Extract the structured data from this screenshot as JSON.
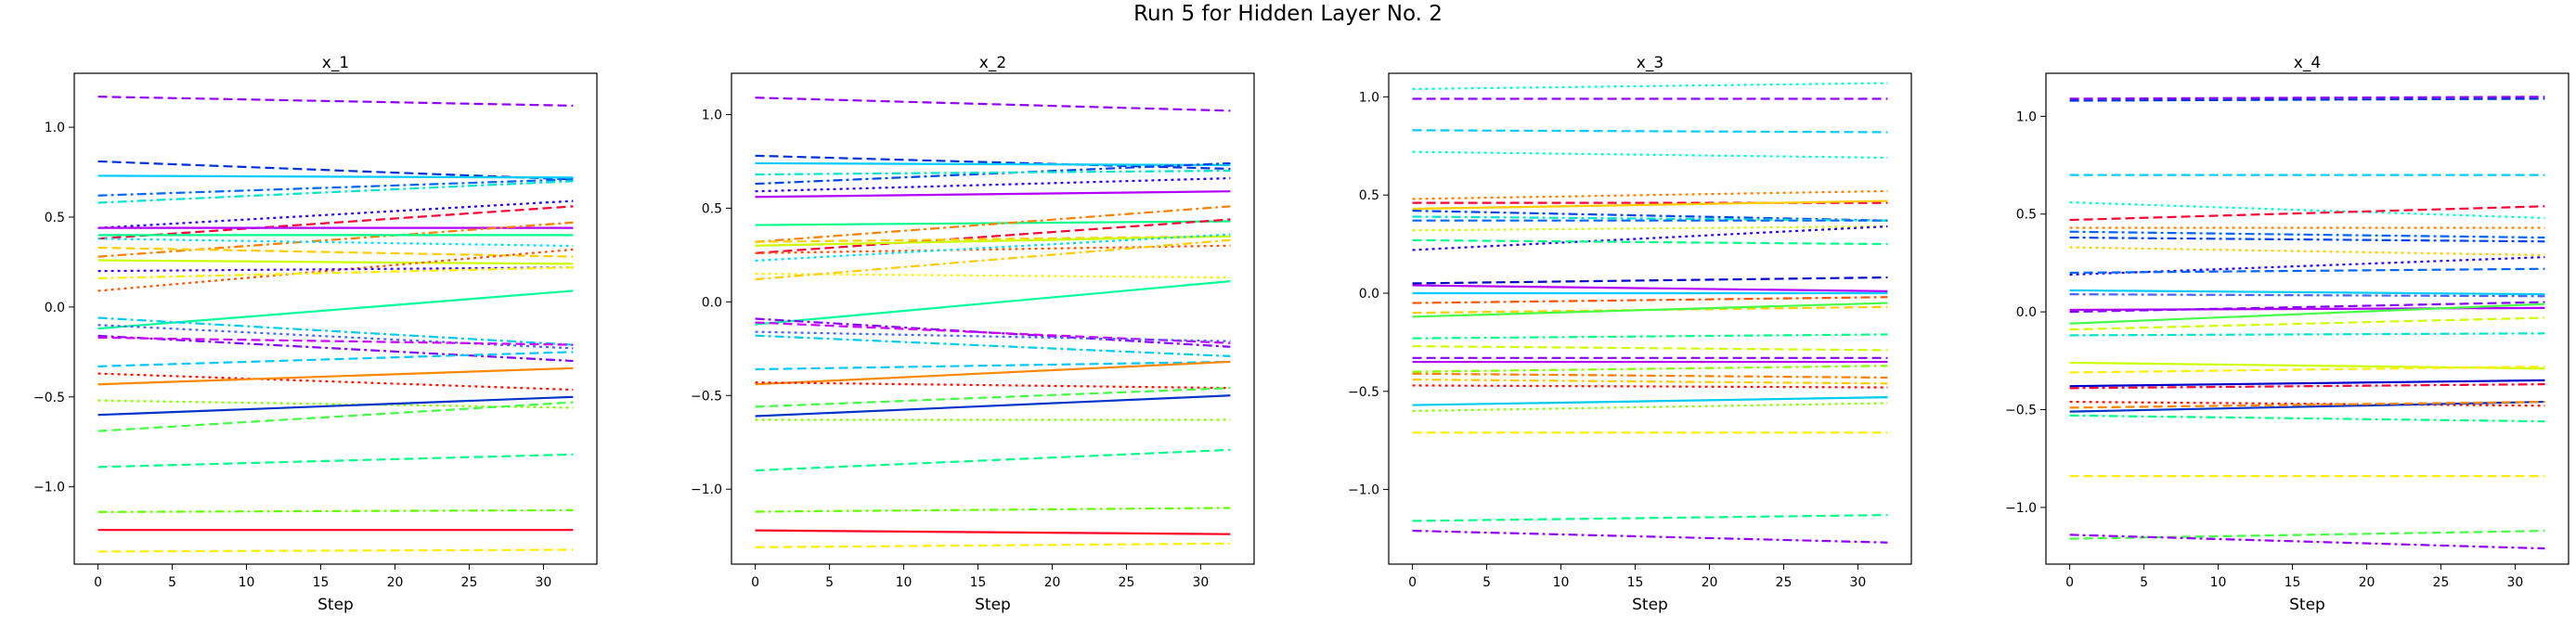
{
  "figure": {
    "title": "Run 5 for Hidden Layer No. 2"
  },
  "chart_data": [
    {
      "type": "line",
      "title": "x_1",
      "xlabel": "Step",
      "xlim": [
        -1.6,
        33.6
      ],
      "ylim": [
        -1.43,
        1.3
      ],
      "xticks": [
        0,
        5,
        10,
        15,
        20,
        25,
        30
      ],
      "yticks": [
        -1.0,
        -0.5,
        0.0,
        0.5,
        1.0
      ],
      "x_range": [
        0,
        32
      ],
      "series": [
        {
          "color": "#9400ff",
          "style": "dashed",
          "start": 1.17,
          "end": 1.12
        },
        {
          "color": "#0033dd",
          "style": "dashed",
          "start": 0.81,
          "end": 0.71
        },
        {
          "color": "#00ccff",
          "style": "solid",
          "start": 0.73,
          "end": 0.72
        },
        {
          "color": "#0066ff",
          "style": "dashdot",
          "start": 0.62,
          "end": 0.71
        },
        {
          "color": "#00e5cc",
          "style": "dashdot",
          "start": 0.58,
          "end": 0.7
        },
        {
          "color": "#2200ff",
          "style": "dotted",
          "start": 0.44,
          "end": 0.59
        },
        {
          "color": "#ff0033",
          "style": "dashed",
          "start": 0.38,
          "end": 0.56
        },
        {
          "color": "#b300ff",
          "style": "solid",
          "start": 0.44,
          "end": 0.44
        },
        {
          "color": "#ff7f00",
          "style": "dashdot",
          "start": 0.28,
          "end": 0.47
        },
        {
          "color": "#00ff88",
          "style": "solid",
          "start": 0.4,
          "end": 0.4
        },
        {
          "color": "#00ddff",
          "style": "dotted",
          "start": 0.38,
          "end": 0.34
        },
        {
          "color": "#ffcc00",
          "style": "dashed",
          "start": 0.33,
          "end": 0.28
        },
        {
          "color": "#ccff00",
          "style": "solid",
          "start": 0.26,
          "end": 0.24
        },
        {
          "color": "#ff5500",
          "style": "dotted",
          "start": 0.09,
          "end": 0.32
        },
        {
          "color": "#4400ff",
          "style": "dotted",
          "start": 0.2,
          "end": 0.22
        },
        {
          "color": "#ffee00",
          "style": "dashdot",
          "start": 0.16,
          "end": 0.22
        },
        {
          "color": "#00ff99",
          "style": "solid",
          "start": -0.12,
          "end": 0.09
        },
        {
          "color": "#00ccee",
          "style": "dashdot",
          "start": -0.06,
          "end": -0.21
        },
        {
          "color": "#4466ff",
          "style": "dotted",
          "start": -0.1,
          "end": -0.23
        },
        {
          "color": "#8800ff",
          "style": "dashdot",
          "start": -0.16,
          "end": -0.3
        },
        {
          "color": "#cc00ff",
          "style": "dashed",
          "start": -0.17,
          "end": -0.21
        },
        {
          "color": "#00c8ff",
          "style": "dashed",
          "start": -0.33,
          "end": -0.25
        },
        {
          "color": "#ff1100",
          "style": "dotted",
          "start": -0.37,
          "end": -0.46
        },
        {
          "color": "#ff8800",
          "style": "solid",
          "start": -0.43,
          "end": -0.34
        },
        {
          "color": "#88ff00",
          "style": "dotted",
          "start": -0.52,
          "end": -0.56
        },
        {
          "color": "#44ff44",
          "style": "dashed",
          "start": -0.69,
          "end": -0.53
        },
        {
          "color": "#0033cc",
          "style": "solid",
          "start": -0.6,
          "end": -0.5
        },
        {
          "color": "#00ff88",
          "style": "dashed",
          "start": -0.89,
          "end": -0.82
        },
        {
          "color": "#66ff00",
          "style": "dashdot",
          "start": -1.14,
          "end": -1.13
        },
        {
          "color": "#ff0022",
          "style": "solid",
          "start": -1.24,
          "end": -1.24
        },
        {
          "color": "#ffee00",
          "style": "dashed",
          "start": -1.36,
          "end": -1.35
        }
      ]
    },
    {
      "type": "line",
      "title": "x_2",
      "xlabel": "Step",
      "xlim": [
        -1.6,
        33.6
      ],
      "ylim": [
        -1.4,
        1.22
      ],
      "xticks": [
        0,
        5,
        10,
        15,
        20,
        25,
        30
      ],
      "yticks": [
        -1.0,
        -0.5,
        0.0,
        0.5,
        1.0
      ],
      "x_range": [
        0,
        32
      ],
      "series": [
        {
          "color": "#9400ff",
          "style": "dashed",
          "start": 1.09,
          "end": 1.02
        },
        {
          "color": "#0033dd",
          "style": "dashed",
          "start": 0.78,
          "end": 0.71
        },
        {
          "color": "#00ccff",
          "style": "solid",
          "start": 0.74,
          "end": 0.73
        },
        {
          "color": "#0044ee",
          "style": "dashdot",
          "start": 0.63,
          "end": 0.74
        },
        {
          "color": "#00e5cc",
          "style": "dashdot",
          "start": 0.68,
          "end": 0.7
        },
        {
          "color": "#2200ff",
          "style": "dotted",
          "start": 0.59,
          "end": 0.66
        },
        {
          "color": "#b300ff",
          "style": "solid",
          "start": 0.56,
          "end": 0.59
        },
        {
          "color": "#00ff88",
          "style": "solid",
          "start": 0.41,
          "end": 0.43
        },
        {
          "color": "#ff7f00",
          "style": "dashdot",
          "start": 0.32,
          "end": 0.51
        },
        {
          "color": "#ff0033",
          "style": "dashed",
          "start": 0.26,
          "end": 0.44
        },
        {
          "color": "#ff5500",
          "style": "dotted",
          "start": 0.26,
          "end": 0.3
        },
        {
          "color": "#ffcc00",
          "style": "dashed",
          "start": 0.32,
          "end": 0.35
        },
        {
          "color": "#ccff00",
          "style": "solid",
          "start": 0.3,
          "end": 0.35
        },
        {
          "color": "#00ddff",
          "style": "dotted",
          "start": 0.22,
          "end": 0.36
        },
        {
          "color": "#ffee00",
          "style": "dotted",
          "start": 0.15,
          "end": 0.13
        },
        {
          "color": "#ffcc00",
          "style": "dashdot",
          "start": 0.12,
          "end": 0.33
        },
        {
          "color": "#00ff99",
          "style": "solid",
          "start": -0.12,
          "end": 0.11
        },
        {
          "color": "#8800ff",
          "style": "dashdot",
          "start": -0.09,
          "end": -0.24
        },
        {
          "color": "#cc00ff",
          "style": "dashed",
          "start": -0.11,
          "end": -0.22
        },
        {
          "color": "#4466ff",
          "style": "dotted",
          "start": -0.16,
          "end": -0.21
        },
        {
          "color": "#00ccee",
          "style": "dashdot",
          "start": -0.18,
          "end": -0.29
        },
        {
          "color": "#00c8ff",
          "style": "dashed",
          "start": -0.36,
          "end": -0.32
        },
        {
          "color": "#ff8800",
          "style": "solid",
          "start": -0.44,
          "end": -0.32
        },
        {
          "color": "#ff1100",
          "style": "dotted",
          "start": -0.43,
          "end": -0.46
        },
        {
          "color": "#44ff44",
          "style": "dashed",
          "start": -0.56,
          "end": -0.46
        },
        {
          "color": "#0033cc",
          "style": "solid",
          "start": -0.61,
          "end": -0.5
        },
        {
          "color": "#88ff00",
          "style": "dotted",
          "start": -0.63,
          "end": -0.63
        },
        {
          "color": "#00ff88",
          "style": "dashed",
          "start": -0.9,
          "end": -0.79
        },
        {
          "color": "#66ff00",
          "style": "dashdot",
          "start": -1.12,
          "end": -1.1
        },
        {
          "color": "#ff0022",
          "style": "solid",
          "start": -1.22,
          "end": -1.24
        },
        {
          "color": "#ffee00",
          "style": "dashed",
          "start": -1.31,
          "end": -1.29
        }
      ]
    },
    {
      "type": "line",
      "title": "x_3",
      "xlabel": "Step",
      "xlim": [
        -1.6,
        33.6
      ],
      "ylim": [
        -1.38,
        1.12
      ],
      "xticks": [
        0,
        5,
        10,
        15,
        20,
        25,
        30
      ],
      "yticks": [
        -1.0,
        -0.5,
        0.0,
        0.5,
        1.0
      ],
      "x_range": [
        0,
        32
      ],
      "series": [
        {
          "color": "#00ffcc",
          "style": "dotted",
          "start": 1.04,
          "end": 1.07
        },
        {
          "color": "#9400ff",
          "style": "dashed",
          "start": 0.99,
          "end": 0.99
        },
        {
          "color": "#00ccff",
          "style": "dashed",
          "start": 0.83,
          "end": 0.82
        },
        {
          "color": "#00ffcc",
          "style": "dotted",
          "start": 0.72,
          "end": 0.69
        },
        {
          "color": "#ff7f00",
          "style": "dotted",
          "start": 0.48,
          "end": 0.52
        },
        {
          "color": "#ff0033",
          "style": "dashed",
          "start": 0.46,
          "end": 0.46
        },
        {
          "color": "#ffcc00",
          "style": "solid",
          "start": 0.43,
          "end": 0.47
        },
        {
          "color": "#0044ee",
          "style": "dashdot",
          "start": 0.42,
          "end": 0.37
        },
        {
          "color": "#00e5cc",
          "style": "dashdot",
          "start": 0.39,
          "end": 0.37
        },
        {
          "color": "#0066ff",
          "style": "dashed",
          "start": 0.37,
          "end": 0.37
        },
        {
          "color": "#ccff00",
          "style": "dotted",
          "start": 0.32,
          "end": 0.34
        },
        {
          "color": "#2200ff",
          "style": "dotted",
          "start": 0.22,
          "end": 0.34
        },
        {
          "color": "#00ff88",
          "style": "dashed",
          "start": 0.27,
          "end": 0.25
        },
        {
          "color": "#0000cc",
          "style": "dashed",
          "start": 0.05,
          "end": 0.08
        },
        {
          "color": "#b300ff",
          "style": "solid",
          "start": 0.04,
          "end": 0.01
        },
        {
          "color": "#00ccff",
          "style": "solid",
          "start": 0.0,
          "end": 0.0
        },
        {
          "color": "#ff5500",
          "style": "dashdot",
          "start": -0.05,
          "end": -0.02
        },
        {
          "color": "#ffcc00",
          "style": "dashed",
          "start": -0.1,
          "end": -0.07
        },
        {
          "color": "#44ff44",
          "style": "solid",
          "start": -0.12,
          "end": -0.05
        },
        {
          "color": "#00ff88",
          "style": "dashdot",
          "start": -0.23,
          "end": -0.21
        },
        {
          "color": "#ccff00",
          "style": "dashed",
          "start": -0.27,
          "end": -0.29
        },
        {
          "color": "#8800ff",
          "style": "dashed",
          "start": -0.33,
          "end": -0.33
        },
        {
          "color": "#b300ff",
          "style": "solid",
          "start": -0.35,
          "end": -0.35
        },
        {
          "color": "#88ff00",
          "style": "dashdot",
          "start": -0.4,
          "end": -0.37
        },
        {
          "color": "#ff7f00",
          "style": "dashdot",
          "start": -0.41,
          "end": -0.43
        },
        {
          "color": "#ffcc00",
          "style": "dashdot",
          "start": -0.44,
          "end": -0.46
        },
        {
          "color": "#ff1100",
          "style": "dotted",
          "start": -0.47,
          "end": -0.48
        },
        {
          "color": "#00ccee",
          "style": "solid",
          "start": -0.57,
          "end": -0.53
        },
        {
          "color": "#88ff00",
          "style": "dotted",
          "start": -0.6,
          "end": -0.56
        },
        {
          "color": "#ffee00",
          "style": "dashed",
          "start": -0.71,
          "end": -0.71
        },
        {
          "color": "#00ff88",
          "style": "dashed",
          "start": -1.16,
          "end": -1.13
        },
        {
          "color": "#9400ff",
          "style": "dashdot",
          "start": -1.21,
          "end": -1.27
        }
      ]
    },
    {
      "type": "line",
      "title": "x_4",
      "xlabel": "Step",
      "xlim": [
        -1.6,
        33.6
      ],
      "ylim": [
        -1.29,
        1.22
      ],
      "xticks": [
        0,
        5,
        10,
        15,
        20,
        25,
        30
      ],
      "yticks": [
        -1.0,
        -0.5,
        0.0,
        0.5,
        1.0
      ],
      "x_range": [
        0,
        32
      ],
      "series": [
        {
          "color": "#9400ff",
          "style": "dashed",
          "start": 1.09,
          "end": 1.1
        },
        {
          "color": "#0033dd",
          "style": "dashed",
          "start": 1.08,
          "end": 1.09
        },
        {
          "color": "#00ccff",
          "style": "dashed",
          "start": 0.7,
          "end": 0.7
        },
        {
          "color": "#00ffcc",
          "style": "dotted",
          "start": 0.56,
          "end": 0.48
        },
        {
          "color": "#ff0033",
          "style": "dashed",
          "start": 0.47,
          "end": 0.54
        },
        {
          "color": "#ff7f00",
          "style": "dotted",
          "start": 0.43,
          "end": 0.43
        },
        {
          "color": "#0066ff",
          "style": "dashdot",
          "start": 0.41,
          "end": 0.38
        },
        {
          "color": "#0044ee",
          "style": "dashdot",
          "start": 0.38,
          "end": 0.36
        },
        {
          "color": "#ffcc00",
          "style": "dotted",
          "start": 0.33,
          "end": 0.29
        },
        {
          "color": "#2200ff",
          "style": "dotted",
          "start": 0.19,
          "end": 0.28
        },
        {
          "color": "#0066ff",
          "style": "dashed",
          "start": 0.2,
          "end": 0.22
        },
        {
          "color": "#00ccff",
          "style": "solid",
          "start": 0.11,
          "end": 0.09
        },
        {
          "color": "#4466ff",
          "style": "dashdot",
          "start": 0.09,
          "end": 0.08
        },
        {
          "color": "#b300ff",
          "style": "solid",
          "start": 0.01,
          "end": 0.02
        },
        {
          "color": "#8800ff",
          "style": "dashed",
          "start": 0.0,
          "end": 0.05
        },
        {
          "color": "#44ff44",
          "style": "solid",
          "start": -0.06,
          "end": 0.04
        },
        {
          "color": "#ccff00",
          "style": "dashed",
          "start": -0.09,
          "end": -0.03
        },
        {
          "color": "#00e5cc",
          "style": "dashdot",
          "start": -0.12,
          "end": -0.11
        },
        {
          "color": "#ccff00",
          "style": "solid",
          "start": -0.26,
          "end": -0.29
        },
        {
          "color": "#ffee00",
          "style": "dashed",
          "start": -0.31,
          "end": -0.28
        },
        {
          "color": "#0000cc",
          "style": "solid",
          "start": -0.38,
          "end": -0.35
        },
        {
          "color": "#ff0033",
          "style": "dashdot",
          "start": -0.39,
          "end": -0.37
        },
        {
          "color": "#ff1100",
          "style": "dotted",
          "start": -0.46,
          "end": -0.48
        },
        {
          "color": "#0033cc",
          "style": "solid",
          "start": -0.51,
          "end": -0.46
        },
        {
          "color": "#ff8800",
          "style": "dashed",
          "start": -0.49,
          "end": -0.46
        },
        {
          "color": "#00ff88",
          "style": "dashdot",
          "start": -0.53,
          "end": -0.56
        },
        {
          "color": "#ffee00",
          "style": "dashed",
          "start": -0.84,
          "end": -0.84
        },
        {
          "color": "#44ff44",
          "style": "dashed",
          "start": -1.16,
          "end": -1.12
        },
        {
          "color": "#9400ff",
          "style": "dashdot",
          "start": -1.14,
          "end": -1.21
        }
      ]
    }
  ]
}
